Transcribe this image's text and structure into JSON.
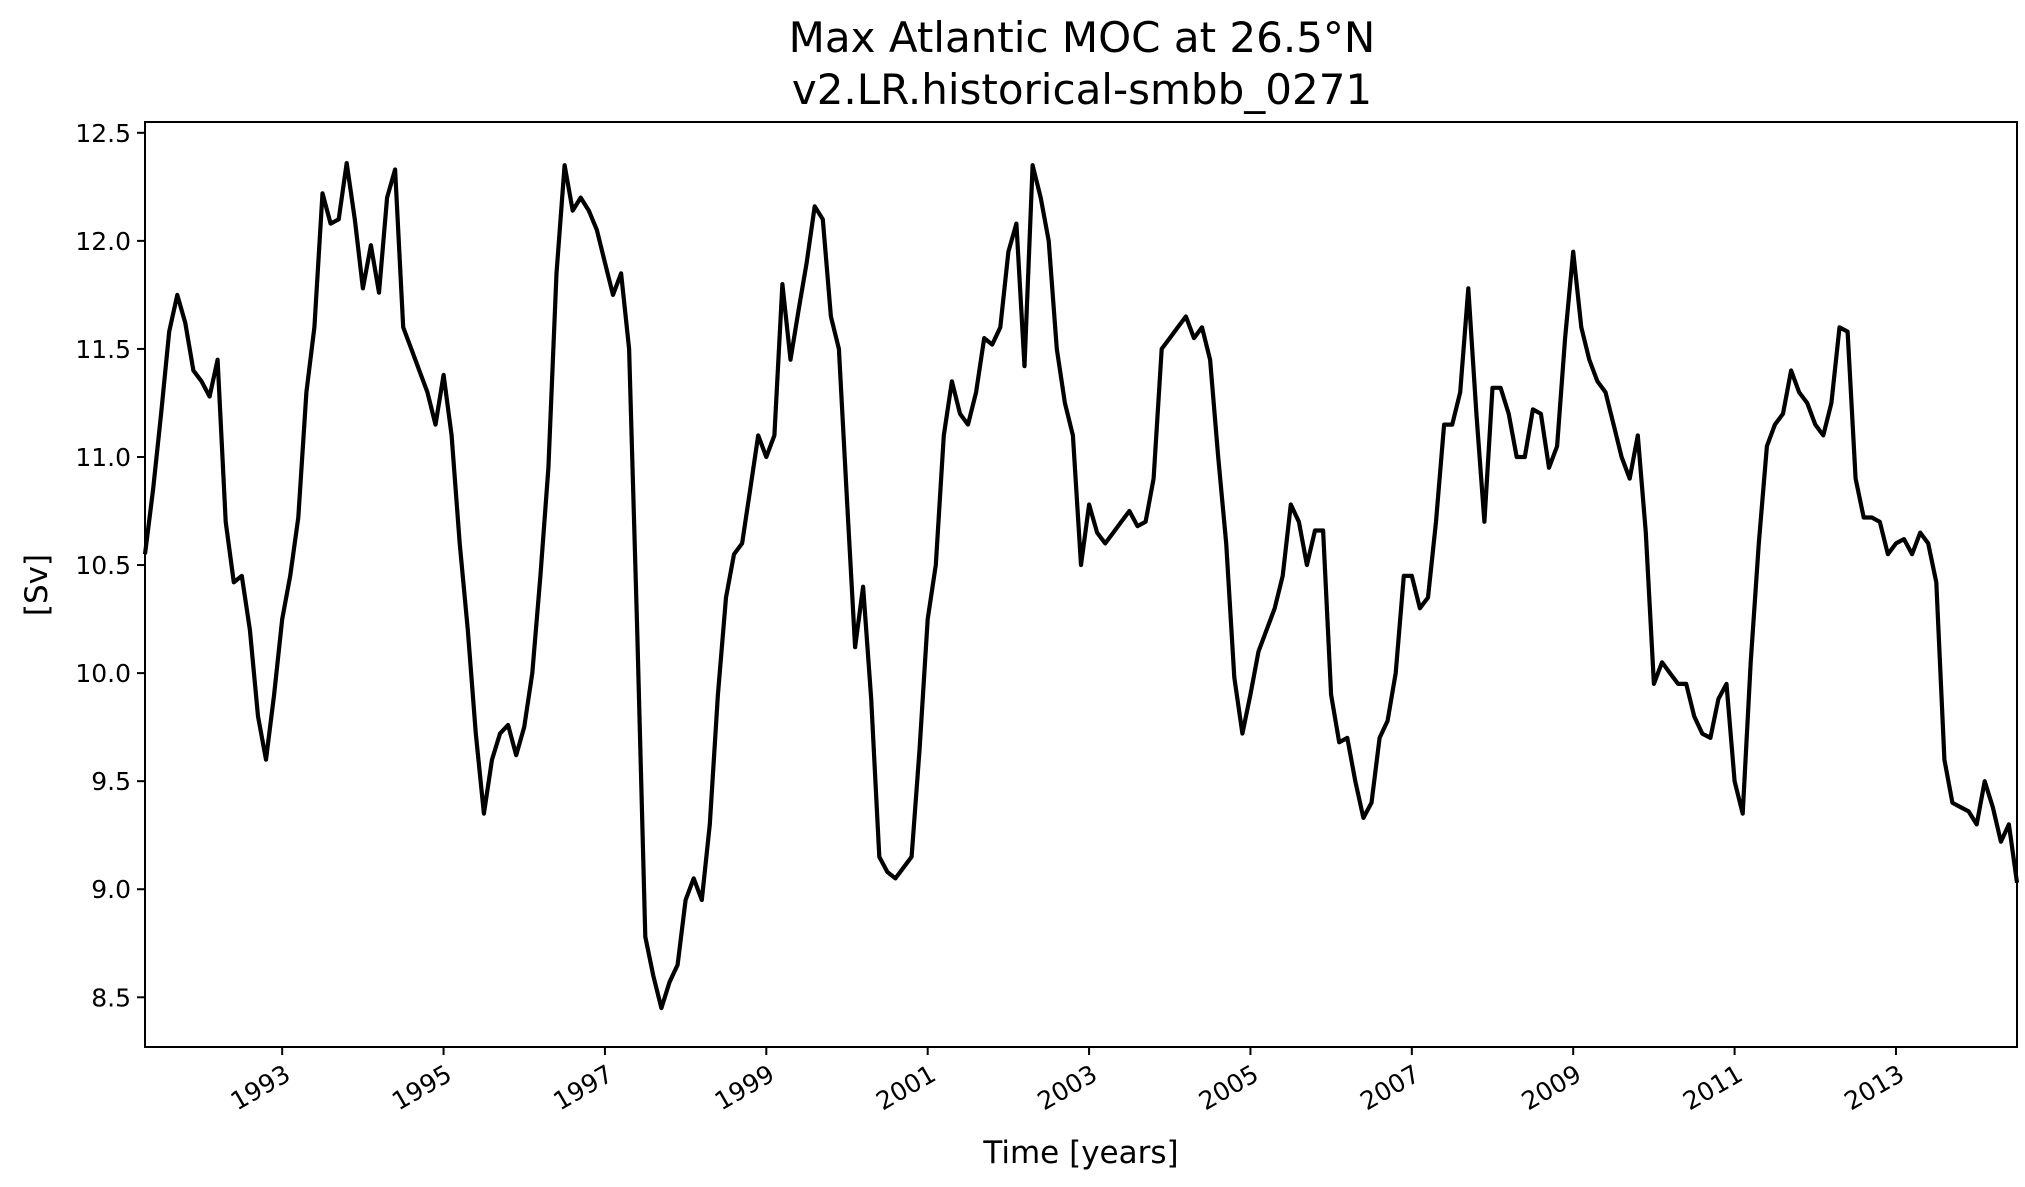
{
  "chart_data": {
    "type": "line",
    "title": "Max Atlantic MOC at 26.5°N",
    "subtitle": "v2.LR.historical-smbb_0271",
    "xlabel": "Time [years]",
    "ylabel": "[Sv]",
    "xlim": [
      1991.3,
      2014.5
    ],
    "ylim": [
      8.27,
      12.55
    ],
    "grid": false,
    "x_ticks": [
      1993,
      1995,
      1997,
      1999,
      2001,
      2003,
      2005,
      2007,
      2009,
      2011,
      2013
    ],
    "x_tick_labels": [
      "1993",
      "1995",
      "1997",
      "1999",
      "2001",
      "2003",
      "2005",
      "2007",
      "2009",
      "2011",
      "2013"
    ],
    "y_ticks": [
      8.5,
      9.0,
      9.5,
      10.0,
      10.5,
      11.0,
      11.5,
      12.0,
      12.5
    ],
    "y_tick_labels": [
      "8.5",
      "9.0",
      "9.5",
      "10.0",
      "10.5",
      "11.0",
      "11.5",
      "12.0",
      "12.5"
    ],
    "series": [
      {
        "name": "Max Atlantic MOC",
        "color": "#000000",
        "x": [
          1991.3,
          1991.4,
          1991.5,
          1991.6,
          1991.7,
          1991.8,
          1991.9,
          1992.0,
          1992.1,
          1992.2,
          1992.3,
          1992.4,
          1992.5,
          1992.6,
          1992.7,
          1992.8,
          1992.9,
          1993.0,
          1993.1,
          1993.2,
          1993.3,
          1993.4,
          1993.5,
          1993.6,
          1993.7,
          1993.8,
          1993.9,
          1994.0,
          1994.1,
          1994.2,
          1994.3,
          1994.4,
          1994.5,
          1994.6,
          1994.7,
          1994.8,
          1994.9,
          1995.0,
          1995.1,
          1995.2,
          1995.3,
          1995.4,
          1995.5,
          1995.6,
          1995.7,
          1995.8,
          1995.9,
          1996.0,
          1996.1,
          1996.2,
          1996.3,
          1996.4,
          1996.5,
          1996.6,
          1996.7,
          1996.8,
          1996.9,
          1997.0,
          1997.1,
          1997.2,
          1997.3,
          1997.4,
          1997.5,
          1997.6,
          1997.7,
          1997.8,
          1997.9,
          1998.0,
          1998.1,
          1998.2,
          1998.3,
          1998.4,
          1998.5,
          1998.6,
          1998.7,
          1998.8,
          1998.9,
          1999.0,
          1999.1,
          1999.2,
          1999.3,
          1999.4,
          1999.5,
          1999.6,
          1999.7,
          1999.8,
          1999.9,
          2000.0,
          2000.1,
          2000.2,
          2000.3,
          2000.4,
          2000.5,
          2000.6,
          2000.7,
          2000.8,
          2000.9,
          2001.0,
          2001.1,
          2001.2,
          2001.3,
          2001.4,
          2001.5,
          2001.6,
          2001.7,
          2001.8,
          2001.9,
          2002.0,
          2002.1,
          2002.2,
          2002.3,
          2002.4,
          2002.5,
          2002.6,
          2002.7,
          2002.8,
          2002.9,
          2003.0,
          2003.1,
          2003.2,
          2003.3,
          2003.4,
          2003.5,
          2003.6,
          2003.7,
          2003.8,
          2003.9,
          2004.0,
          2004.1,
          2004.2,
          2004.3,
          2004.4,
          2004.5,
          2004.6,
          2004.7,
          2004.8,
          2004.9,
          2005.0,
          2005.1,
          2005.2,
          2005.3,
          2005.4,
          2005.5,
          2005.6,
          2005.7,
          2005.8,
          2005.9,
          2006.0,
          2006.1,
          2006.2,
          2006.3,
          2006.4,
          2006.5,
          2006.6,
          2006.7,
          2006.8,
          2006.9,
          2007.0,
          2007.1,
          2007.2,
          2007.3,
          2007.4,
          2007.5,
          2007.6,
          2007.7,
          2007.8,
          2007.9,
          2008.0,
          2008.1,
          2008.2,
          2008.3,
          2008.4,
          2008.5,
          2008.6,
          2008.7,
          2008.8,
          2008.9,
          2009.0,
          2009.1,
          2009.2,
          2009.3,
          2009.4,
          2009.5,
          2009.6,
          2009.7,
          2009.8,
          2009.9,
          2010.0,
          2010.1,
          2010.2,
          2010.3,
          2010.4,
          2010.5,
          2010.6,
          2010.7,
          2010.8,
          2010.9,
          2011.0,
          2011.1,
          2011.2,
          2011.3,
          2011.4,
          2011.5,
          2011.6,
          2011.7,
          2011.8,
          2011.9,
          2012.0,
          2012.1,
          2012.2,
          2012.3,
          2012.4,
          2012.5,
          2012.6,
          2012.7,
          2012.8,
          2012.9,
          2013.0,
          2013.1,
          2013.2,
          2013.3,
          2013.4,
          2013.5,
          2013.6,
          2013.7,
          2013.8,
          2013.9,
          2014.0,
          2014.1,
          2014.2,
          2014.3,
          2014.4,
          2014.5
        ],
        "values": [
          10.55,
          10.85,
          11.2,
          11.58,
          11.75,
          11.62,
          11.4,
          11.35,
          11.28,
          11.45,
          10.7,
          10.42,
          10.45,
          10.2,
          9.8,
          9.6,
          9.9,
          10.25,
          10.45,
          10.72,
          11.3,
          11.6,
          12.22,
          12.08,
          12.1,
          12.36,
          12.1,
          11.78,
          11.98,
          11.76,
          12.2,
          12.33,
          11.6,
          11.5,
          11.4,
          11.3,
          11.15,
          11.38,
          11.1,
          10.6,
          10.2,
          9.72,
          9.35,
          9.6,
          9.72,
          9.76,
          9.62,
          9.75,
          10.0,
          10.45,
          10.95,
          11.85,
          12.35,
          12.14,
          12.2,
          12.14,
          12.05,
          11.9,
          11.75,
          11.85,
          11.5,
          10.2,
          8.78,
          8.6,
          8.45,
          8.57,
          8.65,
          8.95,
          9.05,
          8.95,
          9.3,
          9.9,
          10.35,
          10.55,
          10.6,
          10.85,
          11.1,
          11.0,
          11.1,
          11.8,
          11.45,
          11.68,
          11.9,
          12.16,
          12.1,
          11.65,
          11.5,
          10.8,
          10.12,
          10.4,
          9.88,
          9.15,
          9.08,
          9.05,
          9.1,
          9.15,
          9.65,
          10.25,
          10.5,
          11.1,
          11.35,
          11.2,
          11.15,
          11.3,
          11.55,
          11.52,
          11.6,
          11.95,
          12.08,
          11.42,
          12.35,
          12.2,
          12.0,
          11.5,
          11.25,
          11.1,
          10.5,
          10.78,
          10.65,
          10.6,
          10.65,
          10.7,
          10.75,
          10.68,
          10.7,
          10.9,
          11.5,
          11.55,
          11.6,
          11.65,
          11.55,
          11.6,
          11.45,
          11.0,
          10.6,
          9.98,
          9.72,
          9.9,
          10.1,
          10.2,
          10.3,
          10.45,
          10.78,
          10.7,
          10.5,
          10.66,
          10.66,
          9.9,
          9.68,
          9.7,
          9.5,
          9.33,
          9.4,
          9.7,
          9.78,
          10.0,
          10.45,
          10.45,
          10.3,
          10.35,
          10.7,
          11.15,
          11.15,
          11.3,
          11.78,
          11.2,
          10.7,
          11.32,
          11.32,
          11.2,
          11.0,
          11.0,
          11.22,
          11.2,
          10.95,
          11.05,
          11.55,
          11.95,
          11.6,
          11.45,
          11.35,
          11.3,
          11.15,
          11.0,
          10.9,
          11.1,
          10.65,
          9.95,
          10.05,
          10.0,
          9.95,
          9.95,
          9.8,
          9.72,
          9.7,
          9.88,
          9.95,
          9.5,
          9.35,
          10.05,
          10.6,
          11.05,
          11.15,
          11.2,
          11.4,
          11.3,
          11.25,
          11.15,
          11.1,
          11.25,
          11.6,
          11.58,
          10.9,
          10.72,
          10.72,
          10.7,
          10.55,
          10.6,
          10.62,
          10.55,
          10.65,
          10.6,
          10.42,
          9.6,
          9.4,
          9.38,
          9.36,
          9.3,
          9.5,
          9.38,
          9.22,
          9.3,
          9.03
        ]
      }
    ]
  }
}
